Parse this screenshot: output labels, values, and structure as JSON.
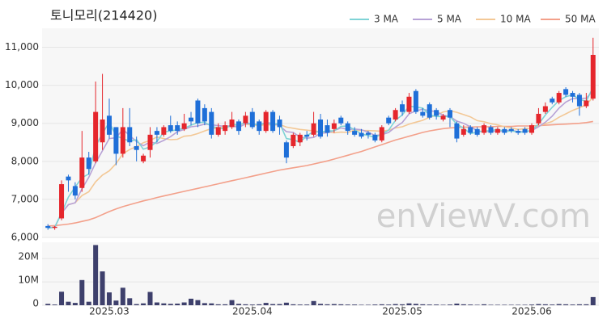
{
  "chart_data": {
    "type": "candlestick",
    "title": "토니모리(214420)",
    "watermark": "enViewV.com",
    "categories": [
      null,
      null,
      null,
      null,
      null,
      null,
      null,
      null,
      null,
      "2025.03",
      null,
      null,
      null,
      null,
      null,
      null,
      null,
      null,
      null,
      null,
      null,
      null,
      null,
      null,
      null,
      null,
      null,
      null,
      null,
      null,
      "2025.04",
      null,
      null,
      null,
      null,
      null,
      null,
      null,
      null,
      null,
      null,
      null,
      null,
      null,
      null,
      null,
      null,
      null,
      null,
      null,
      null,
      null,
      "2025.05",
      null,
      null,
      null,
      null,
      null,
      null,
      null,
      null,
      null,
      null,
      null,
      null,
      null,
      null,
      null,
      null,
      null,
      null,
      "2025.06",
      null,
      null,
      null,
      null,
      null,
      null,
      null,
      null,
      null
    ],
    "open": [
      6300,
      6250,
      6500,
      7600,
      7350,
      7300,
      8100,
      8000,
      8500,
      9200,
      8900,
      8200,
      8900,
      8400,
      8000,
      8300,
      8800,
      8700,
      8950,
      8950,
      8850,
      9150,
      9600,
      9400,
      9300,
      8700,
      8800,
      8900,
      9050,
      9000,
      9300,
      9050,
      8800,
      9300,
      9100,
      8500,
      8400,
      8500,
      8700,
      8700,
      9100,
      8950,
      8850,
      9150,
      9000,
      8800,
      8750,
      8750,
      8700,
      8550,
      9150,
      9100,
      9500,
      9300,
      9850,
      9300,
      9500,
      9350,
      9100,
      9350,
      9000,
      8700,
      8900,
      8850,
      8750,
      8900,
      8750,
      8850,
      8850,
      8800,
      8850,
      8750,
      9000,
      9300,
      9650,
      9550,
      9900,
      9800,
      9750,
      9450,
      9650
    ],
    "high": [
      6350,
      6300,
      7500,
      7650,
      7450,
      8800,
      8250,
      10100,
      10300,
      9650,
      8900,
      9400,
      9400,
      8650,
      8200,
      8900,
      8900,
      8950,
      9200,
      9050,
      9250,
      9300,
      9650,
      9500,
      9400,
      9000,
      9050,
      9300,
      9100,
      9300,
      9400,
      9100,
      9350,
      9350,
      9200,
      8550,
      8750,
      8750,
      8800,
      9300,
      9250,
      9100,
      9100,
      9200,
      9050,
      8900,
      8850,
      8800,
      8750,
      8950,
      9200,
      9400,
      9600,
      9800,
      9900,
      9400,
      9550,
      9400,
      9250,
      9400,
      9050,
      8950,
      8950,
      8900,
      9000,
      8950,
      8900,
      8900,
      8900,
      8850,
      8900,
      9000,
      9400,
      9550,
      9700,
      9850,
      9950,
      9850,
      9800,
      9800,
      11250
    ],
    "low": [
      6200,
      6200,
      6450,
      7200,
      7000,
      7200,
      7650,
      7950,
      8300,
      8600,
      7900,
      8100,
      8400,
      8000,
      7950,
      8100,
      8500,
      8650,
      8750,
      8700,
      8800,
      8950,
      8900,
      8950,
      8600,
      8650,
      8700,
      8850,
      8700,
      8900,
      8850,
      8700,
      8750,
      8750,
      8700,
      7950,
      8350,
      8400,
      8550,
      8650,
      8600,
      8650,
      8750,
      8950,
      8700,
      8650,
      8600,
      8600,
      8500,
      8500,
      8950,
      9050,
      9200,
      9250,
      9250,
      9150,
      9100,
      9100,
      9050,
      8900,
      8500,
      8650,
      8700,
      8650,
      8700,
      8700,
      8700,
      8700,
      8750,
      8700,
      8700,
      8700,
      8950,
      9250,
      9500,
      9500,
      9700,
      9550,
      9200,
      9400,
      9600
    ],
    "close": [
      6250,
      6280,
      7400,
      7500,
      7100,
      8100,
      7800,
      9300,
      9100,
      8700,
      8200,
      8900,
      8500,
      8300,
      8150,
      8700,
      8700,
      8900,
      8800,
      8800,
      9000,
      9050,
      9000,
      9050,
      8700,
      8900,
      8950,
      9100,
      8800,
      9200,
      8900,
      8800,
      9300,
      8800,
      8900,
      8100,
      8700,
      8700,
      8650,
      9000,
      8650,
      8750,
      9000,
      9000,
      8800,
      8700,
      8650,
      8700,
      8550,
      8900,
      9000,
      9350,
      9300,
      9700,
      9300,
      9200,
      9150,
      9200,
      9200,
      9150,
      8600,
      8850,
      8750,
      8700,
      8950,
      8750,
      8850,
      8750,
      8800,
      8750,
      8750,
      8950,
      9250,
      9450,
      9550,
      9800,
      9750,
      9700,
      9450,
      9600,
      10800
    ],
    "up_color": "#e5262c",
    "down_color": "#1f6fd8",
    "ylim": [
      6000,
      11500
    ],
    "yticks": [
      {
        "value": 6000,
        "label": "6,000"
      },
      {
        "value": 7000,
        "label": "7,000"
      },
      {
        "value": 8000,
        "label": "8,000"
      },
      {
        "value": 9000,
        "label": "9,000"
      },
      {
        "value": 10000,
        "label": "10,000"
      },
      {
        "value": 11000,
        "label": "11,000"
      }
    ],
    "grid": true,
    "legend": "top-right",
    "series": [
      {
        "name": "3 MA",
        "color": "#7fd3d6",
        "values": [
          6250,
          6265,
          6640,
          7060,
          7330,
          7570,
          7670,
          8400,
          8730,
          9030,
          8670,
          8600,
          8530,
          8570,
          8320,
          8380,
          8520,
          8770,
          8800,
          8830,
          8870,
          8950,
          9020,
          9030,
          8920,
          8880,
          8850,
          8980,
          8950,
          9030,
          8970,
          8970,
          9000,
          8970,
          9000,
          8600,
          8570,
          8500,
          8680,
          8780,
          8770,
          8800,
          8800,
          8920,
          8930,
          8830,
          8720,
          8680,
          8630,
          8720,
          8820,
          9080,
          9220,
          9450,
          9430,
          9400,
          9220,
          9180,
          9180,
          9180,
          8980,
          8870,
          8730,
          8770,
          8800,
          8800,
          8850,
          8780,
          8800,
          8770,
          8770,
          8820,
          8980,
          9220,
          9420,
          9600,
          9700,
          9750,
          9630,
          9580,
          9950
        ]
      },
      {
        "name": "5 MA",
        "color": "#b7a2d6",
        "values": [
          6250,
          6265,
          6640,
          6860,
          6910,
          7280,
          7580,
          7960,
          8280,
          8600,
          8620,
          8840,
          8680,
          8520,
          8410,
          8510,
          8470,
          8550,
          8650,
          8780,
          8840,
          8910,
          8930,
          8980,
          8960,
          8940,
          8920,
          8940,
          8890,
          8990,
          8990,
          8960,
          9020,
          9000,
          8940,
          8780,
          8760,
          8640,
          8610,
          8630,
          8740,
          8750,
          8810,
          8880,
          8840,
          8850,
          8830,
          8770,
          8680,
          8700,
          8760,
          8900,
          9020,
          9250,
          9330,
          9370,
          9330,
          9310,
          9210,
          9180,
          9060,
          9000,
          8910,
          8810,
          8770,
          8800,
          8780,
          8800,
          8820,
          8780,
          8780,
          8810,
          8910,
          9030,
          9190,
          9400,
          9560,
          9650,
          9650,
          9660,
          9860
        ]
      },
      {
        "name": "10 MA",
        "color": "#f3c896",
        "values": [
          6250,
          6265,
          6640,
          6860,
          6910,
          7100,
          7200,
          7460,
          7640,
          7750,
          7940,
          8200,
          8310,
          8390,
          8490,
          8550,
          8640,
          8600,
          8570,
          8580,
          8660,
          8680,
          8730,
          8800,
          8860,
          8880,
          8910,
          8930,
          8930,
          8970,
          8960,
          8940,
          8970,
          8950,
          8970,
          8900,
          8870,
          8840,
          8820,
          8800,
          8780,
          8780,
          8750,
          8770,
          8760,
          8820,
          8810,
          8810,
          8800,
          8790,
          8820,
          8880,
          8910,
          8980,
          9030,
          9080,
          9160,
          9210,
          9300,
          9330,
          9290,
          9230,
          9170,
          9070,
          9040,
          8990,
          8960,
          8910,
          8880,
          8840,
          8860,
          8870,
          8920,
          8990,
          9050,
          9160,
          9250,
          9340,
          9410,
          9490,
          9690
        ]
      },
      {
        "name": "50 MA",
        "color": "#f3a08a",
        "values": [
          6300,
          6310,
          6330,
          6350,
          6380,
          6420,
          6460,
          6520,
          6600,
          6680,
          6750,
          6810,
          6860,
          6910,
          6960,
          7000,
          7050,
          7090,
          7130,
          7170,
          7210,
          7250,
          7290,
          7330,
          7370,
          7410,
          7450,
          7490,
          7530,
          7570,
          7610,
          7650,
          7690,
          7730,
          7770,
          7800,
          7830,
          7860,
          7890,
          7930,
          7970,
          8010,
          8060,
          8110,
          8160,
          8210,
          8260,
          8320,
          8380,
          8440,
          8500,
          8560,
          8610,
          8660,
          8710,
          8760,
          8800,
          8830,
          8860,
          8880,
          8890,
          8900,
          8900,
          8910,
          8910,
          8910,
          8920,
          8920,
          8920,
          8930,
          8930,
          8930,
          8940,
          8950,
          8960,
          8970,
          8980,
          8990,
          9000,
          9020,
          9050
        ]
      }
    ],
    "volume": {
      "color": "#3e406c",
      "ylim": [
        0,
        27000000
      ],
      "yticks": [
        0,
        {
          "value": 10000000,
          "label": "10M"
        },
        {
          "value": 20000000,
          "label": "20M"
        }
      ],
      "values": [
        600000,
        300000,
        5800000,
        1500000,
        1000000,
        10800000,
        1500000,
        25800000,
        14500000,
        5500000,
        2000000,
        7500000,
        3000000,
        500000,
        800000,
        5700000,
        1200000,
        800000,
        600000,
        700000,
        1200000,
        2800000,
        2200000,
        900000,
        800000,
        400000,
        400000,
        2200000,
        600000,
        400000,
        300000,
        400000,
        1000000,
        500000,
        500000,
        1100000,
        400000,
        300000,
        300000,
        1800000,
        600000,
        400000,
        500000,
        400000,
        300000,
        300000,
        200000,
        200000,
        300000,
        400000,
        300000,
        500000,
        400000,
        800000,
        600000,
        400000,
        300000,
        300000,
        200000,
        300000,
        700000,
        400000,
        300000,
        200000,
        400000,
        200000,
        200000,
        200000,
        200000,
        200000,
        200000,
        300000,
        500000,
        400000,
        300000,
        500000,
        400000,
        300000,
        400000,
        400000,
        3500000
      ]
    }
  }
}
